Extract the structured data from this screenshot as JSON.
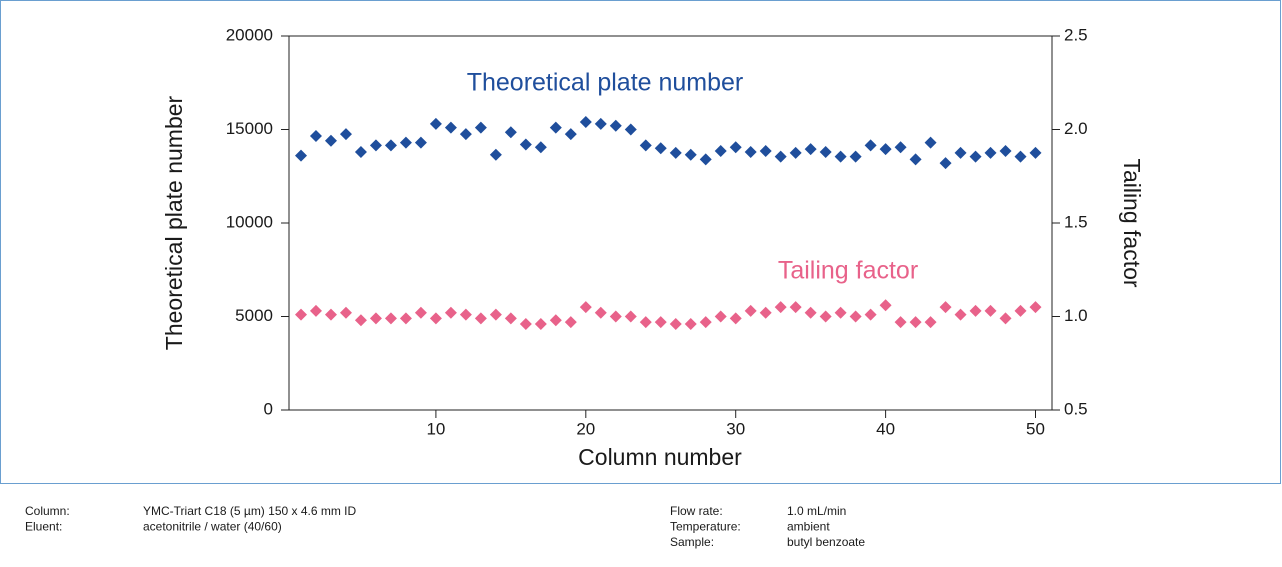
{
  "chart_data": {
    "type": "scatter",
    "x_label": "Column number",
    "y_label": "Theoretical plate number",
    "y2_label": "Tailing factor",
    "x": [
      1,
      2,
      3,
      4,
      5,
      6,
      7,
      8,
      9,
      10,
      11,
      12,
      13,
      14,
      15,
      16,
      17,
      18,
      19,
      20,
      21,
      22,
      23,
      24,
      25,
      26,
      27,
      28,
      29,
      30,
      31,
      32,
      33,
      34,
      35,
      36,
      37,
      38,
      39,
      40,
      41,
      42,
      43,
      44,
      45,
      46,
      47,
      48,
      49,
      50
    ],
    "xlim": [
      0.2,
      51.1
    ],
    "xticks": [
      10,
      20,
      30,
      40,
      50
    ],
    "ylim": [
      0,
      20000
    ],
    "yticks": [
      0,
      5000,
      10000,
      15000,
      20000
    ],
    "y2lim": [
      0.5,
      2.5
    ],
    "y2ticks": [
      0.5,
      {
        "value": 1,
        "label": "1.0"
      },
      1.5,
      {
        "value": 2,
        "label": "2.0"
      },
      2.5
    ],
    "grid": false,
    "series": [
      {
        "name": "Theoretical plate number",
        "color": "#1f4e9c",
        "axis": "y",
        "values": [
          13600,
          14650,
          14400,
          14750,
          13800,
          14150,
          14150,
          14300,
          14300,
          15300,
          15100,
          14750,
          15100,
          13650,
          14850,
          14200,
          14050,
          15100,
          14750,
          15400,
          15300,
          15200,
          15000,
          14150,
          14000,
          13750,
          13650,
          13400,
          13850,
          14050,
          13800,
          13850,
          13550,
          13750,
          13950,
          13800,
          13550,
          13550,
          14150,
          13950,
          14050,
          13400,
          14300,
          13200,
          13750,
          13550,
          13750,
          13850,
          13550,
          13750
        ]
      },
      {
        "name": "Tailing factor",
        "color": "#e8628a",
        "axis": "y2",
        "values": [
          1.01,
          1.03,
          1.01,
          1.02,
          0.98,
          0.99,
          0.99,
          0.99,
          1.02,
          0.99,
          1.02,
          1.01,
          0.99,
          1.01,
          0.99,
          0.96,
          0.96,
          0.98,
          0.97,
          1.05,
          1.02,
          1.0,
          1.0,
          0.97,
          0.97,
          0.96,
          0.96,
          0.97,
          1.0,
          0.99,
          1.03,
          1.02,
          1.05,
          1.05,
          1.02,
          1.0,
          1.02,
          1.0,
          1.01,
          1.06,
          0.97,
          0.97,
          0.97,
          1.05,
          1.01,
          1.03,
          1.03,
          0.99,
          1.03,
          1.05
        ]
      }
    ]
  },
  "conditions": {
    "left": [
      {
        "label": "Column:",
        "value": "YMC-Triart C18 (5 µm) 150 x 4.6 mm ID"
      },
      {
        "label": "Eluent:",
        "value": "acetonitrile / water (40/60)"
      }
    ],
    "right": [
      {
        "label": "Flow rate:",
        "value": "1.0 mL/min"
      },
      {
        "label": "Temperature:",
        "value": "ambient"
      },
      {
        "label": "Sample:",
        "value": "butyl benzoate"
      }
    ]
  }
}
